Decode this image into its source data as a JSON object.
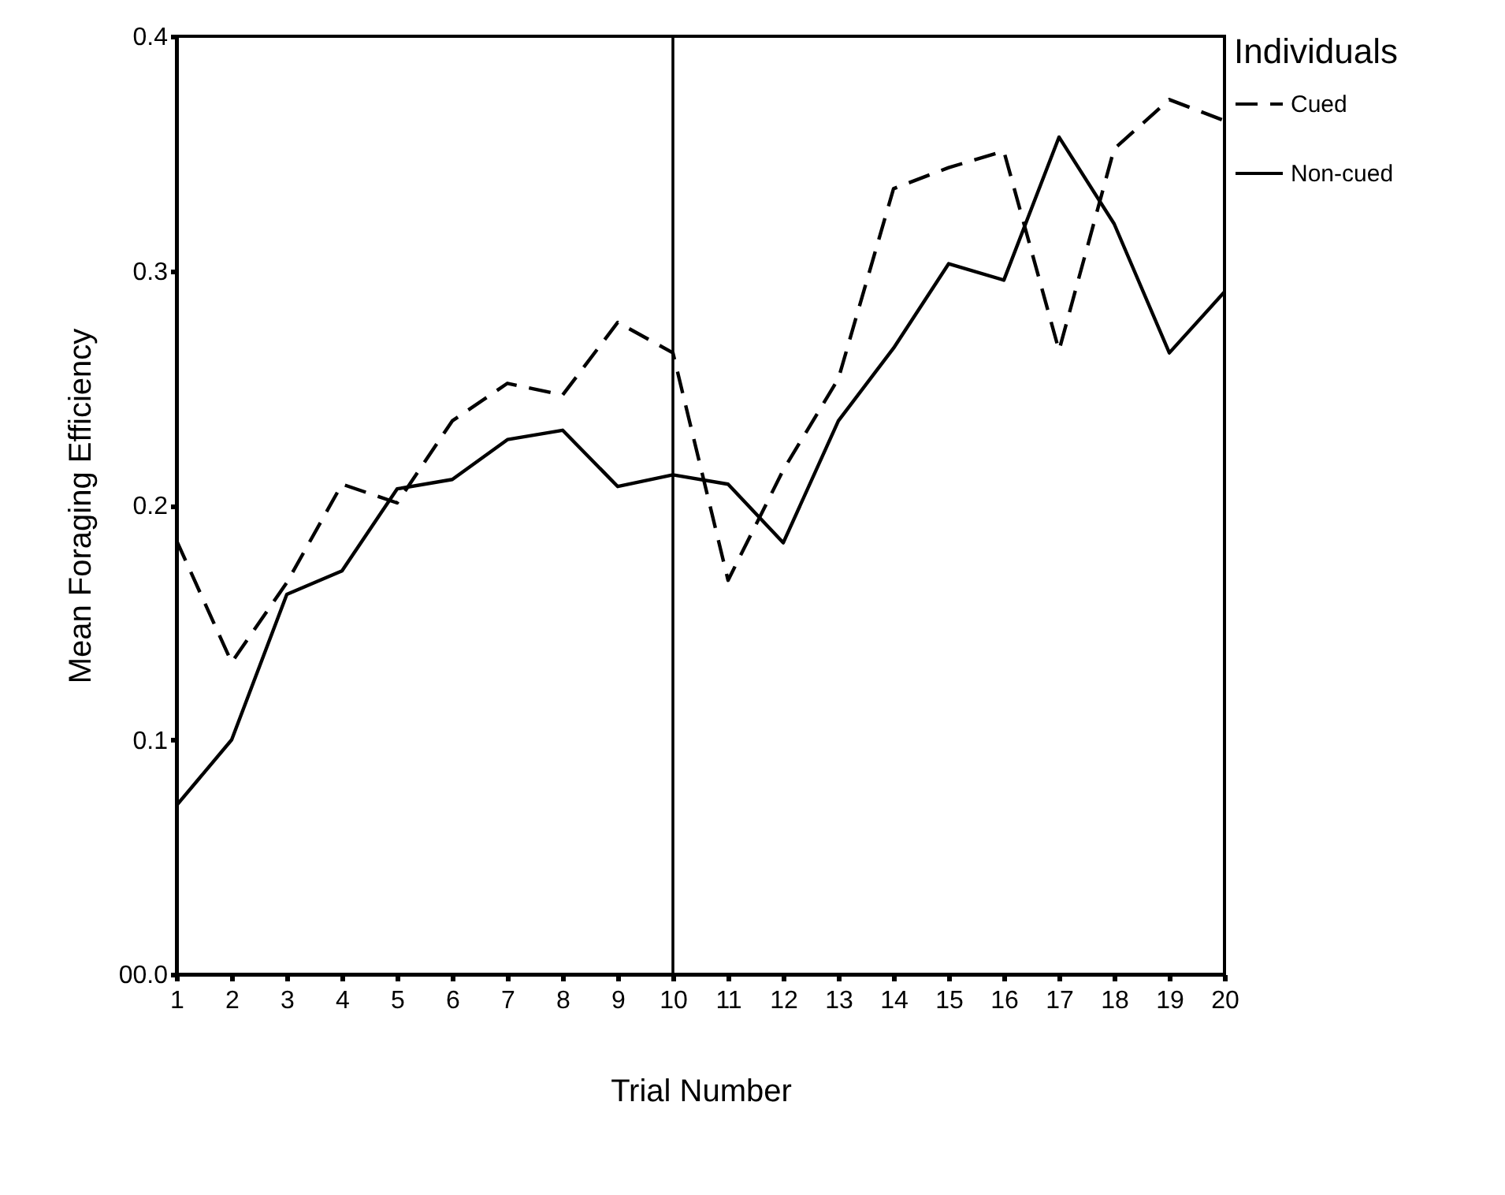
{
  "chart_data": {
    "type": "line",
    "xlabel": "Trial Number",
    "ylabel": "Mean Foraging Efficiency",
    "legend_title": "Individuals",
    "legend": "right",
    "grid": false,
    "marker": "none",
    "x": [
      1,
      2,
      3,
      4,
      5,
      6,
      7,
      8,
      9,
      10,
      11,
      12,
      13,
      14,
      15,
      16,
      17,
      18,
      19,
      20
    ],
    "xlim": [
      1,
      20
    ],
    "xticks": [
      1,
      2,
      3,
      4,
      5,
      6,
      7,
      8,
      9,
      10,
      11,
      12,
      13,
      14,
      15,
      16,
      17,
      18,
      19,
      20
    ],
    "ylim": [
      0,
      0.4
    ],
    "yticks": [
      {
        "value": 0,
        "label": "00.0"
      },
      0.1,
      0.2,
      0.3,
      0.4
    ],
    "series": [
      {
        "name": "Cued",
        "color": "#000000",
        "line_style": "dashed",
        "values": [
          0.185,
          0.133,
          0.167,
          0.209,
          0.201,
          0.236,
          0.252,
          0.247,
          0.278,
          0.265,
          0.168,
          0.215,
          0.254,
          0.335,
          0.344,
          0.351,
          0.266,
          0.352,
          0.373,
          0.364
        ]
      },
      {
        "name": "Non-cued",
        "color": "#000000",
        "line_style": "solid",
        "values": [
          0.072,
          0.1,
          0.162,
          0.172,
          0.207,
          0.211,
          0.228,
          0.232,
          0.208,
          0.213,
          0.209,
          0.184,
          0.236,
          0.267,
          0.303,
          0.296,
          0.357,
          0.32,
          0.265,
          0.291
        ]
      }
    ],
    "ref_lines": [
      {
        "axis": "x",
        "value": 10,
        "color": "#000000",
        "line_style": "solid"
      }
    ]
  }
}
